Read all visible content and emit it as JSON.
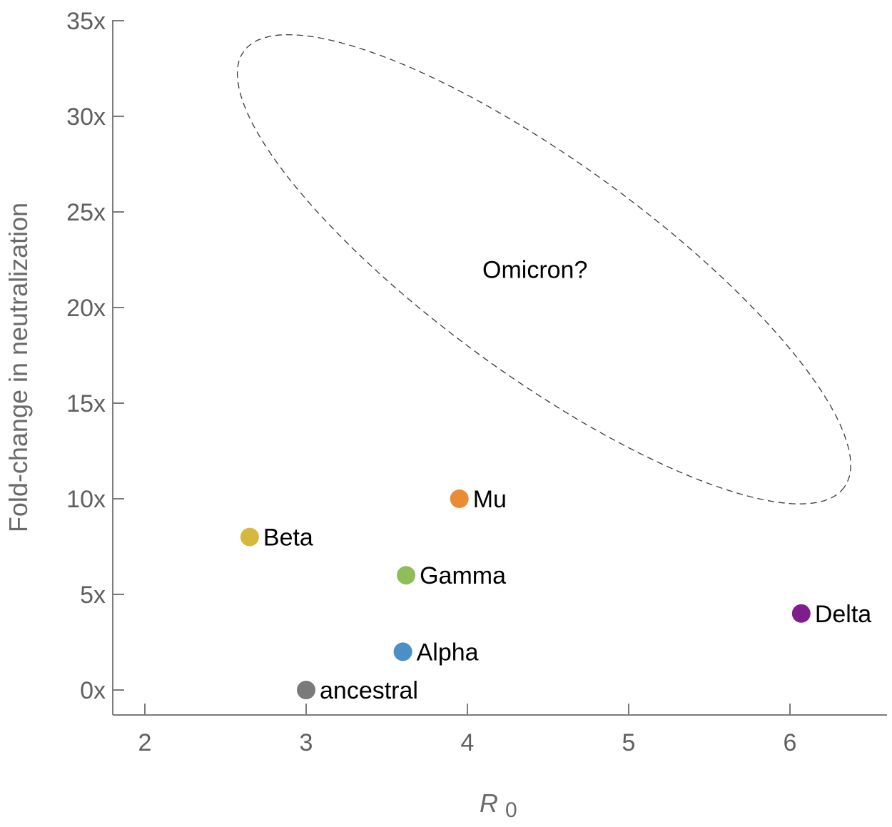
{
  "chart_data": {
    "type": "scatter",
    "title": "",
    "xlabel": "R",
    "xlabel_subscript": "0",
    "ylabel": "Fold-change in neutralization",
    "xlim": [
      1.8,
      6.6
    ],
    "ylim": [
      -1.3,
      35
    ],
    "x_ticks": [
      2,
      3,
      4,
      5,
      6
    ],
    "x_tick_labels": [
      "2",
      "3",
      "4",
      "5",
      "6"
    ],
    "y_ticks": [
      0,
      5,
      10,
      15,
      20,
      25,
      30,
      35
    ],
    "y_tick_labels": [
      "0x",
      "5x",
      "10x",
      "15x",
      "20x",
      "25x",
      "30x",
      "35x"
    ],
    "grid": false,
    "legend": "none",
    "points": [
      {
        "label": "ancestral",
        "x": 3.0,
        "y": 0,
        "color": "#7a7a7a"
      },
      {
        "label": "Alpha",
        "x": 3.6,
        "y": 2,
        "color": "#4a8fc6"
      },
      {
        "label": "Beta",
        "x": 2.65,
        "y": 8,
        "color": "#d6b83f"
      },
      {
        "label": "Gamma",
        "x": 3.62,
        "y": 6,
        "color": "#8fbd5a"
      },
      {
        "label": "Mu",
        "x": 3.95,
        "y": 10,
        "color": "#ea8b35"
      },
      {
        "label": "Delta",
        "x": 6.07,
        "y": 4,
        "color": "#7e1e8c"
      }
    ],
    "annotations": [
      {
        "text": "Omicron?",
        "x": 4.5,
        "y": 22,
        "style": "dashed-ellipse"
      }
    ],
    "region": {
      "type": "ellipse",
      "style": "dashed",
      "x_range": [
        2.6,
        6.35
      ],
      "y_range": [
        9.1,
        34.9
      ],
      "label": "Omicron?"
    }
  }
}
